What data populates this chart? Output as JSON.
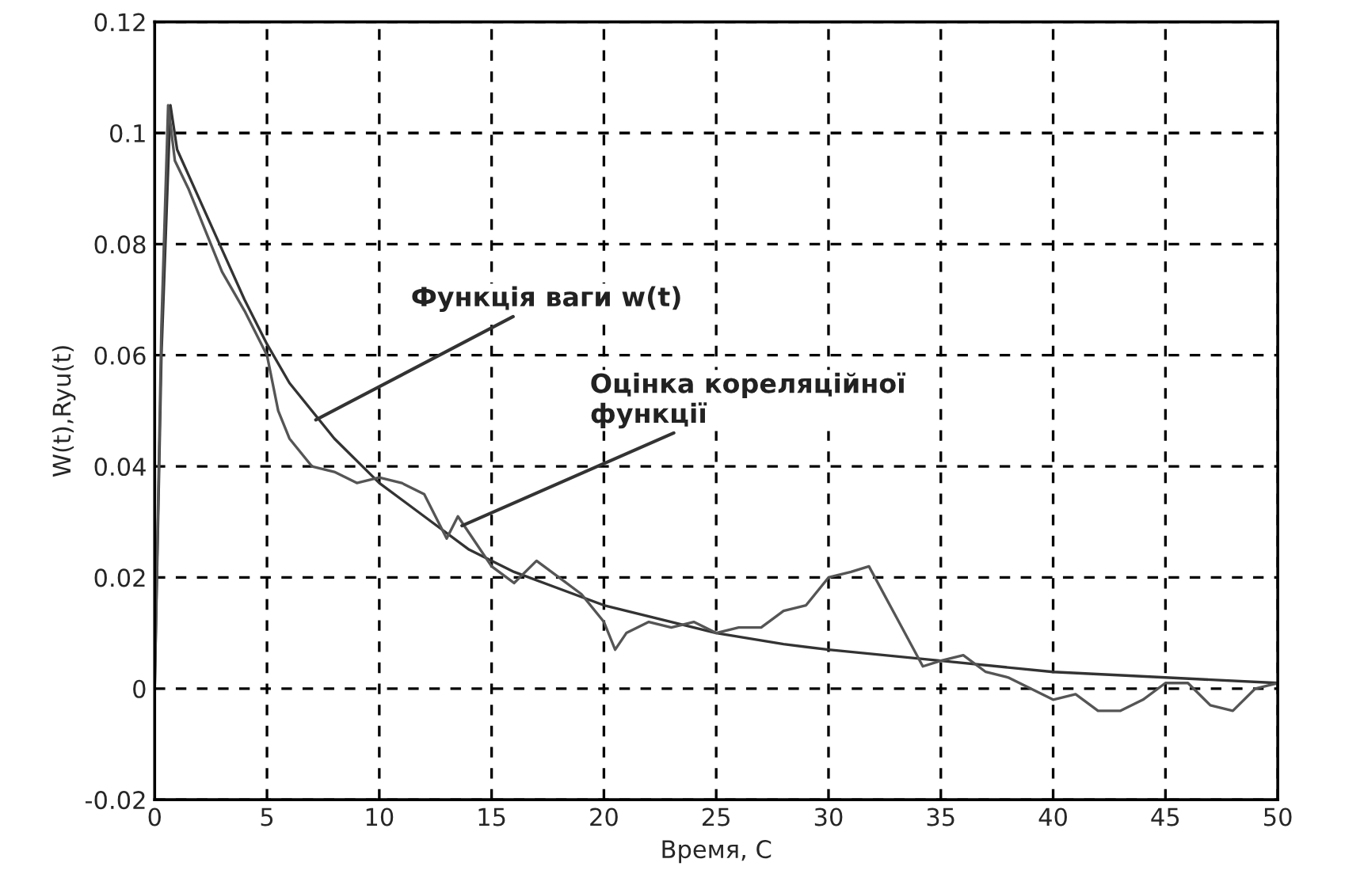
{
  "chart_data": {
    "type": "line",
    "xlabel": "Время, С",
    "ylabel": "W(t),Ryu(t)",
    "xlim": [
      0,
      50
    ],
    "xticks": [
      0,
      5,
      10,
      15,
      20,
      25,
      30,
      35,
      40,
      45,
      50
    ],
    "ylim": [
      -0.02,
      0.12
    ],
    "yticks": [
      -0.02,
      0,
      0.02,
      0.04,
      0.06,
      0.08,
      0.1,
      0.12
    ],
    "grid": true,
    "legend": false,
    "series": [
      {
        "color": "#333333",
        "x": [
          0,
          0.3,
          0.7,
          1,
          2,
          3,
          4,
          5,
          6,
          8,
          10,
          12,
          14,
          16,
          18,
          20,
          22,
          25,
          28,
          30,
          35,
          40,
          45,
          50
        ],
        "values": [
          0,
          0.06,
          0.105,
          0.097,
          0.088,
          0.079,
          0.07,
          0.062,
          0.055,
          0.045,
          0.037,
          0.031,
          0.025,
          0.021,
          0.018,
          0.015,
          0.013,
          0.01,
          0.008,
          0.007,
          0.005,
          0.003,
          0.002,
          0.001
        ]
      },
      {
        "color": "#555555",
        "x": [
          0,
          0.3,
          0.6,
          0.9,
          1.5,
          2,
          3,
          4,
          5,
          5.5,
          6,
          7,
          8,
          9,
          10,
          11,
          12,
          13,
          13.5,
          14,
          15,
          16,
          17,
          18,
          19,
          20,
          20.5,
          21,
          22,
          23,
          24,
          25,
          26,
          27,
          28,
          29,
          30,
          31,
          31.8,
          33,
          34.2,
          35,
          36,
          37,
          38,
          39,
          40,
          41,
          42,
          43,
          44,
          45,
          46,
          47,
          48,
          49,
          50
        ],
        "values": [
          0,
          0.065,
          0.105,
          0.095,
          0.09,
          0.085,
          0.075,
          0.068,
          0.06,
          0.05,
          0.045,
          0.04,
          0.039,
          0.037,
          0.038,
          0.037,
          0.035,
          0.027,
          0.031,
          0.028,
          0.022,
          0.019,
          0.023,
          0.02,
          0.017,
          0.012,
          0.007,
          0.01,
          0.012,
          0.011,
          0.012,
          0.01,
          0.011,
          0.011,
          0.014,
          0.015,
          0.02,
          0.021,
          0.022,
          0.013,
          0.004,
          0.005,
          0.006,
          0.003,
          0.002,
          0.0,
          -0.002,
          -0.001,
          -0.004,
          -0.004,
          -0.002,
          0.001,
          0.001,
          -0.003,
          -0.004,
          0.0,
          0.001
        ]
      }
    ],
    "annotations": [
      {
        "text": "Функція ваги w(t)",
        "x": 7,
        "y": 0.048
      },
      {
        "text": "Оцінка кореляційної\nфункції",
        "x": 13.5,
        "y": 0.029
      }
    ]
  }
}
